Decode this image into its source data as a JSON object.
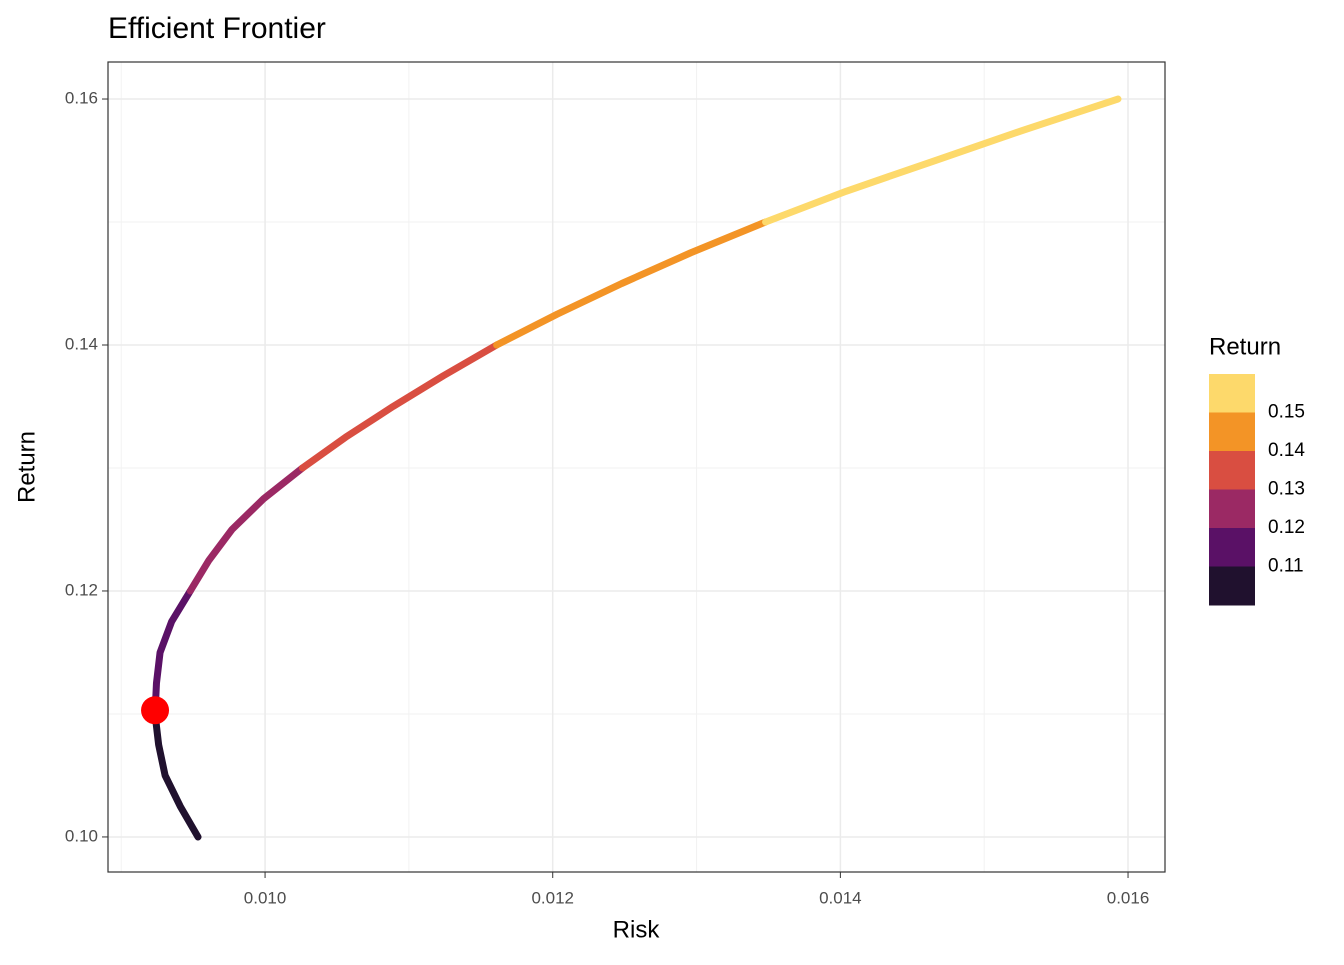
{
  "chart_data": {
    "type": "line",
    "title": "Efficient Frontier",
    "x_label": "Risk",
    "y_label": "Return",
    "xlim": [
      0.008908,
      0.016257
    ],
    "ylim": [
      0.09715,
      0.16301
    ],
    "xticks": [
      {
        "value": 0.01,
        "label": "0.010"
      },
      {
        "value": 0.012,
        "label": "0.012"
      },
      {
        "value": 0.014,
        "label": "0.014"
      },
      {
        "value": 0.016,
        "label": "0.016"
      }
    ],
    "yticks": [
      {
        "value": 0.1,
        "label": "0.10"
      },
      0.12,
      0.14,
      0.16
    ],
    "grid": true,
    "series": [
      {
        "color": "#20112e",
        "x": [
          0.009534,
          0.00941,
          0.009305,
          0.00926,
          0.009235
        ],
        "values": [
          0.1,
          0.1025,
          0.105,
          0.1075,
          0.11
        ]
      },
      {
        "color": "#5a1166",
        "x": [
          0.009235,
          0.009245,
          0.00927,
          0.00935,
          0.00948
        ],
        "values": [
          0.11,
          0.1125,
          0.115,
          0.1175,
          0.12
        ]
      },
      {
        "color": "#9b2964",
        "x": [
          0.00948,
          0.00961,
          0.00977,
          0.00999,
          0.01026
        ],
        "values": [
          0.12,
          0.1225,
          0.125,
          0.1275,
          0.13
        ]
      },
      {
        "color": "#d94e41",
        "x": [
          0.01026,
          0.01056,
          0.01089,
          0.01124,
          0.01161
        ],
        "values": [
          0.13,
          0.1325,
          0.135,
          0.1375,
          0.14
        ]
      },
      {
        "color": "#f39426",
        "x": [
          0.01161,
          0.01203,
          0.01248,
          0.01296,
          0.01348
        ],
        "values": [
          0.14,
          0.1425,
          0.145,
          0.1475,
          0.15
        ]
      },
      {
        "color": "#fdd96b",
        "x": [
          0.01348,
          0.01404,
          0.01466,
          0.01528,
          0.01593
        ],
        "values": [
          0.15,
          0.1525,
          0.155,
          0.1575,
          0.16
        ]
      }
    ],
    "highlight": {
      "x": 0.009235,
      "y": 0.1103,
      "color": "#ff0000"
    },
    "legend": {
      "title": "Return",
      "breaks": [
        0.11,
        0.12,
        0.13,
        0.14,
        0.15
      ]
    }
  }
}
